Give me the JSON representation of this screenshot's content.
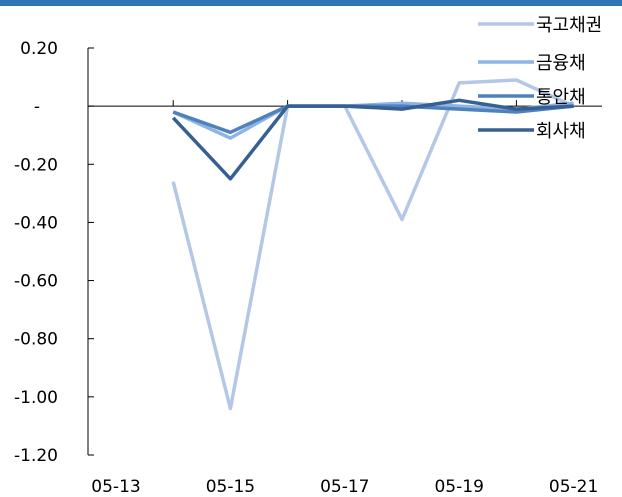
{
  "chart_data": {
    "type": "line",
    "title": "",
    "xlabel": "",
    "ylabel": "",
    "x_tick_labels": [
      "05-13",
      "05-15",
      "05-17",
      "05-19",
      "05-21"
    ],
    "x_categories": [
      "05-13",
      "05-14",
      "05-15",
      "05-16",
      "05-17",
      "05-18",
      "05-19",
      "05-20",
      "05-21"
    ],
    "y_ticks": [
      {
        "value": 0.2,
        "label": "0.20"
      },
      {
        "value": 0,
        "label": "-"
      },
      {
        "value": -0.2,
        "label": "-0.20"
      },
      {
        "value": -0.4,
        "label": "-0.40"
      },
      {
        "value": -0.6,
        "label": "-0.60"
      },
      {
        "value": -0.8,
        "label": "-0.80"
      },
      {
        "value": -1.0,
        "label": "-1.00"
      },
      {
        "value": -1.2,
        "label": "-1.20"
      }
    ],
    "ylim": [
      -1.2,
      0.2
    ],
    "grid": false,
    "legend_position": "top-right",
    "series": [
      {
        "name": "국고채권",
        "color": "#b4c7e7",
        "values": [
          null,
          -0.26,
          -1.04,
          0,
          0,
          -0.39,
          0.08,
          0.09,
          0.0
        ]
      },
      {
        "name": "금융채",
        "color": "#8eb4e3",
        "values": [
          null,
          -0.02,
          -0.11,
          0,
          0,
          0.01,
          0.0,
          -0.01,
          0.01
        ]
      },
      {
        "name": "통안채",
        "color": "#4f81bd",
        "values": [
          null,
          -0.02,
          -0.09,
          0,
          0,
          0.0,
          -0.01,
          -0.02,
          0.0
        ]
      },
      {
        "name": "회사채",
        "color": "#366092",
        "values": [
          null,
          -0.04,
          -0.25,
          0,
          0,
          -0.01,
          0.02,
          -0.01,
          0.0
        ]
      }
    ]
  },
  "style": {
    "top_bar_color": "#2e75b6",
    "axis_color": "#000000"
  }
}
